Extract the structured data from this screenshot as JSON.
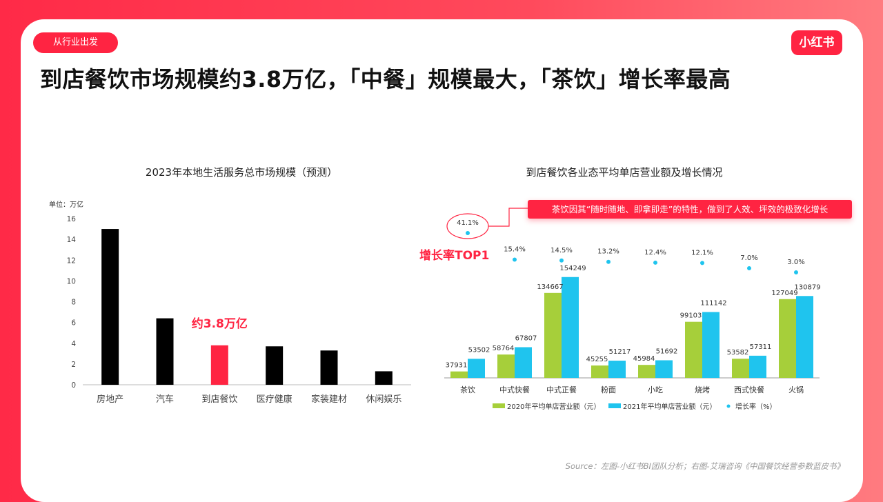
{
  "tag": "从行业出发",
  "logo": "小红书",
  "page_title": "到店餐饮市场规模约3.8万亿，「中餐」规模最大，「茶饮」增长率最高",
  "source": "Source：左图-小红书BI团队分析；右图-艾瑞咨询《中国餐饮经营参数蓝皮书》",
  "colors": {
    "brand": "#ff2442",
    "left_bar": "#000000",
    "left_highlight": "#ff2442",
    "bar_2020": "#a6cf3a",
    "bar_2021": "#1fc4ee",
    "growth_dot": "#1fc4ee"
  },
  "chart_data": [
    {
      "type": "bar",
      "title": "2023年本地生活服务总市场规模（预测）",
      "unit_label": "单位：万亿",
      "categories": [
        "房地产",
        "汽车",
        "到店餐饮",
        "医疗健康",
        "家装建材",
        "休闲娱乐"
      ],
      "values": [
        15.0,
        6.4,
        3.8,
        3.7,
        3.3,
        1.3
      ],
      "highlight_index": 2,
      "annotation": "约3.8万亿",
      "ylim": [
        0,
        16
      ],
      "yticks": [
        0,
        2,
        4,
        6,
        8,
        10,
        12,
        14,
        16
      ],
      "grid": false
    },
    {
      "type": "bar",
      "title": "到店餐饮各业态平均单店营业额及增长情况",
      "categories": [
        "茶饮",
        "中式快餐",
        "中式正餐",
        "粉面",
        "小吃",
        "烧烤",
        "西式快餐",
        "火锅"
      ],
      "series": [
        {
          "name": "2020年平均单店营业额（元）",
          "values": [
            37931,
            58764,
            134667,
            45255,
            45984,
            99103,
            53582,
            127049
          ]
        },
        {
          "name": "2021年平均单店营业额（元）",
          "values": [
            53502,
            67807,
            154249,
            51217,
            51692,
            111142,
            57311,
            130879
          ]
        }
      ],
      "growth_series": {
        "name": "增长率（%）",
        "values": [
          41.1,
          15.4,
          14.5,
          13.2,
          12.4,
          12.1,
          7.0,
          3.0
        ],
        "labels": [
          "41.1%",
          "15.4%",
          "14.5%",
          "13.2%",
          "12.4%",
          "12.1%",
          "7.0%",
          "3.0%"
        ]
      },
      "ylim": [
        30000,
        160000
      ],
      "legend_position": "bottom",
      "grid": false,
      "annotations": {
        "callout": "茶饮因其“随时随地、即拿即走”的特性，做到了人效、坪效的极致化增长",
        "badge": "增长率TOP1"
      }
    }
  ]
}
